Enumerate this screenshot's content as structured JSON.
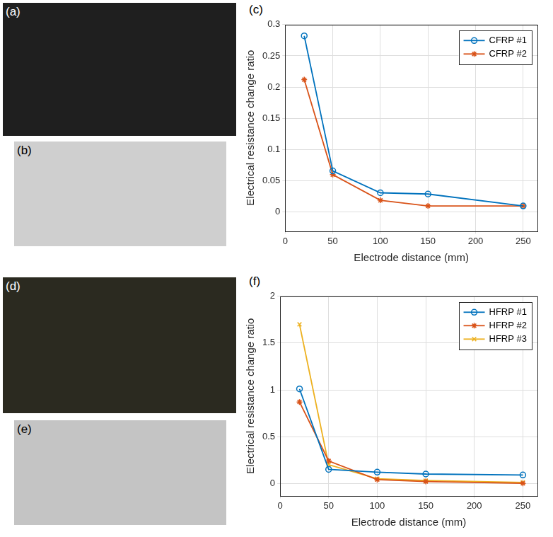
{
  "photo_panels": [
    "(a)",
    "(b)",
    "(d)",
    "(e)"
  ],
  "chart_data": [
    {
      "panel_label": "(c)",
      "type": "line",
      "x_label": "Electrode distance (mm)",
      "y_label": "Electrical resistance change ratio",
      "x": [
        20,
        50,
        100,
        150,
        250
      ],
      "series": [
        {
          "name": "CFRP #1",
          "color": "#0072BD",
          "marker": "circle",
          "values": [
            0.282,
            0.066,
            0.031,
            0.029,
            0.01
          ]
        },
        {
          "name": "CFRP #2",
          "color": "#D95319",
          "marker": "star",
          "values": [
            0.212,
            0.06,
            0.019,
            0.01,
            0.01
          ]
        }
      ],
      "xlim": [
        0,
        265
      ],
      "ylim": [
        -0.03,
        0.3
      ],
      "xticks": [
        0,
        50,
        100,
        150,
        200,
        250
      ],
      "yticks": [
        0,
        0.05,
        0.1,
        0.15,
        0.2,
        0.25,
        0.3
      ],
      "grid": true,
      "legend": "upper right"
    },
    {
      "panel_label": "(f)",
      "type": "line",
      "x_label": "Electrode distance (mm)",
      "y_label": "Electrical resistance change ratio",
      "x": [
        20,
        50,
        100,
        150,
        250
      ],
      "series": [
        {
          "name": "HFRP #1",
          "color": "#0072BD",
          "marker": "circle",
          "values": [
            1.01,
            0.15,
            0.12,
            0.1,
            0.09
          ]
        },
        {
          "name": "HFRP #2",
          "color": "#D95319",
          "marker": "star",
          "values": [
            0.87,
            0.24,
            0.04,
            0.02,
            0.0
          ]
        },
        {
          "name": "HFRP #3",
          "color": "#EDB120",
          "marker": "x",
          "values": [
            1.7,
            0.2,
            0.05,
            0.03,
            0.01
          ]
        }
      ],
      "xlim": [
        0,
        265
      ],
      "ylim": [
        -0.13,
        2
      ],
      "xticks": [
        0,
        50,
        100,
        150,
        200,
        250
      ],
      "yticks": [
        0,
        0.5,
        1,
        1.5,
        2
      ],
      "grid": true,
      "legend": "upper right"
    }
  ]
}
